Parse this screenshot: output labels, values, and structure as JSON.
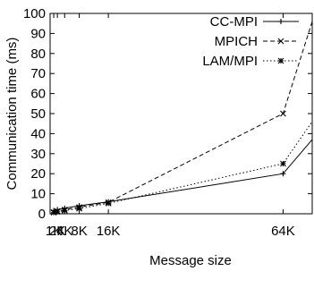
{
  "chart_data": {
    "type": "line",
    "title": "",
    "xlabel": "Message size",
    "ylabel": "Communication time (ms)",
    "xscale": "linear",
    "xlim": [
      0,
      72
    ],
    "ylim": [
      0,
      100
    ],
    "x_ticks": [
      {
        "value": 1,
        "label": "1K"
      },
      {
        "value": 2,
        "label": "2K"
      },
      {
        "value": 4,
        "label": "4K"
      },
      {
        "value": 8,
        "label": "8K"
      },
      {
        "value": 16,
        "label": "16K"
      },
      {
        "value": 64,
        "label": "64K"
      }
    ],
    "y_ticks": [
      0,
      10,
      20,
      30,
      40,
      50,
      60,
      70,
      80,
      90,
      100
    ],
    "grid": false,
    "legend_position": "top-right",
    "series": [
      {
        "name": "CC-MPI",
        "line": "solid",
        "marker": "plus",
        "color": "#000000",
        "x": [
          1,
          2,
          4,
          8,
          16,
          64,
          72
        ],
        "y": [
          1.6,
          2.1,
          2.8,
          4.0,
          6.0,
          20.0,
          37.0
        ]
      },
      {
        "name": "MPICH",
        "line": "dashed",
        "marker": "cross",
        "color": "#000000",
        "x": [
          1,
          2,
          4,
          8,
          16,
          64,
          72
        ],
        "y": [
          0.8,
          1.3,
          2.0,
          3.3,
          5.7,
          50.0,
          96.0
        ]
      },
      {
        "name": "LAM/MPI",
        "line": "dotted",
        "marker": "star",
        "color": "#000000",
        "x": [
          1,
          2,
          4,
          8,
          16,
          64,
          72
        ],
        "y": [
          0.6,
          1.0,
          1.6,
          2.6,
          5.2,
          25.0,
          46.0
        ]
      }
    ]
  }
}
